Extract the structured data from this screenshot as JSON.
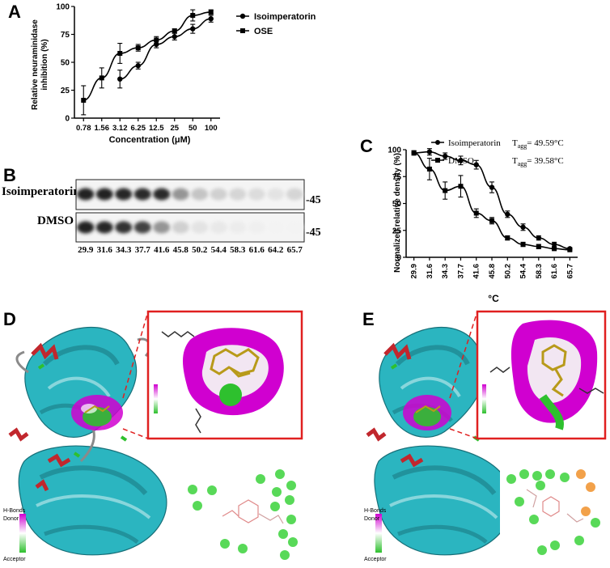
{
  "panels": {
    "A": "A",
    "B": "B",
    "C": "C",
    "D": "D",
    "E": "E"
  },
  "panelA": {
    "xlabel": "Concentration (μM)",
    "ylabel_line1": "Relative neuraminidase",
    "ylabel_line2": "inhibition (%)",
    "legend": [
      "Isoimperatorin",
      "OSE"
    ]
  },
  "panelB": {
    "row_labels": [
      "Isoimperatorin",
      "DMSO"
    ],
    "mw_marker": "45",
    "lane_temps": [
      "29.9",
      "31.6",
      "34.3",
      "37.7",
      "41.6",
      "45.8",
      "50.2",
      "54.4",
      "58.3",
      "61.6",
      "64.2",
      "65.7"
    ],
    "band_intensity": {
      "Isoimperatorin": [
        0.95,
        0.95,
        0.92,
        0.9,
        0.9,
        0.45,
        0.25,
        0.2,
        0.18,
        0.15,
        0.12,
        0.18
      ],
      "DMSO": [
        0.95,
        0.92,
        0.88,
        0.8,
        0.45,
        0.2,
        0.12,
        0.1,
        0.08,
        0.07,
        0.05,
        0.05
      ]
    }
  },
  "panelC": {
    "xlabel": "°C",
    "ylabel": "Normalized relative density (%)",
    "legend": [
      {
        "name": "Isoimperatorin",
        "tagg_prefix": "T",
        "tagg_sub": "agg",
        "tagg_value": "= 49.59°C"
      },
      {
        "name": "DMSO",
        "tagg_prefix": "T",
        "tagg_sub": "agg",
        "tagg_value": "= 39.58°C"
      }
    ]
  },
  "panelD": {
    "hbonds_label": "H-Bonds",
    "donor": "Donor",
    "acceptor": "Acceptor"
  },
  "panelE": {
    "hbonds_label": "H-Bonds",
    "donor": "Donor",
    "acceptor": "Acceptor"
  },
  "colors": {
    "protein": "#2bb5c0",
    "helix": "#c1272d",
    "loop": "#8a8a8a",
    "surface_pink": "#d000d0",
    "surface_green": "#2ec02e",
    "ligand": "#b89a1a",
    "zoom_border": "#e02020",
    "residue_green": "#3bd23b",
    "residue_orange": "#f0902a"
  },
  "chart_data": [
    {
      "type": "scatter",
      "title": "",
      "xlabel": "Concentration (μM)",
      "ylabel": "Relative neuraminidase inhibition (%)",
      "categories": [
        "0.78",
        "1.56",
        "3.12",
        "6.25",
        "12.5",
        "25",
        "50",
        "100"
      ],
      "ylim": [
        0,
        100
      ],
      "yticks": [
        0,
        25,
        50,
        75,
        100
      ],
      "series": [
        {
          "name": "Isoimperatorin",
          "marker": "circle",
          "values": [
            null,
            null,
            35,
            47,
            66,
            73,
            80,
            89
          ],
          "errors": [
            null,
            null,
            8,
            3,
            3,
            3,
            4,
            3
          ]
        },
        {
          "name": "OSE",
          "marker": "square",
          "values": [
            16,
            36,
            58,
            63,
            70,
            78,
            92,
            95
          ],
          "errors": [
            13,
            9,
            9,
            3,
            3,
            2,
            5,
            2
          ]
        }
      ]
    },
    {
      "type": "scatter",
      "title": "",
      "xlabel": "°C",
      "ylabel": "Normalized relative density (%)",
      "categories": [
        "29.9",
        "31.6",
        "34.3",
        "37.7",
        "41.6",
        "45.8",
        "50.2",
        "54.4",
        "58.3",
        "61.6",
        "65.7"
      ],
      "ylim": [
        0,
        100
      ],
      "yticks": [
        0,
        25,
        50,
        75,
        100
      ],
      "series": [
        {
          "name": "Isoimperatorin",
          "marker": "circle",
          "values": [
            97,
            98,
            94,
            90,
            86,
            65,
            40,
            28,
            18,
            12,
            8
          ],
          "errors": [
            2,
            3,
            3,
            4,
            4,
            5,
            3,
            3,
            2,
            2,
            1
          ]
        },
        {
          "name": "DMSO",
          "marker": "square",
          "values": [
            97,
            82,
            62,
            66,
            41,
            34,
            18,
            12,
            10,
            8,
            7
          ],
          "errors": [
            2,
            10,
            8,
            10,
            4,
            3,
            2,
            2,
            2,
            1,
            1
          ]
        }
      ]
    }
  ]
}
